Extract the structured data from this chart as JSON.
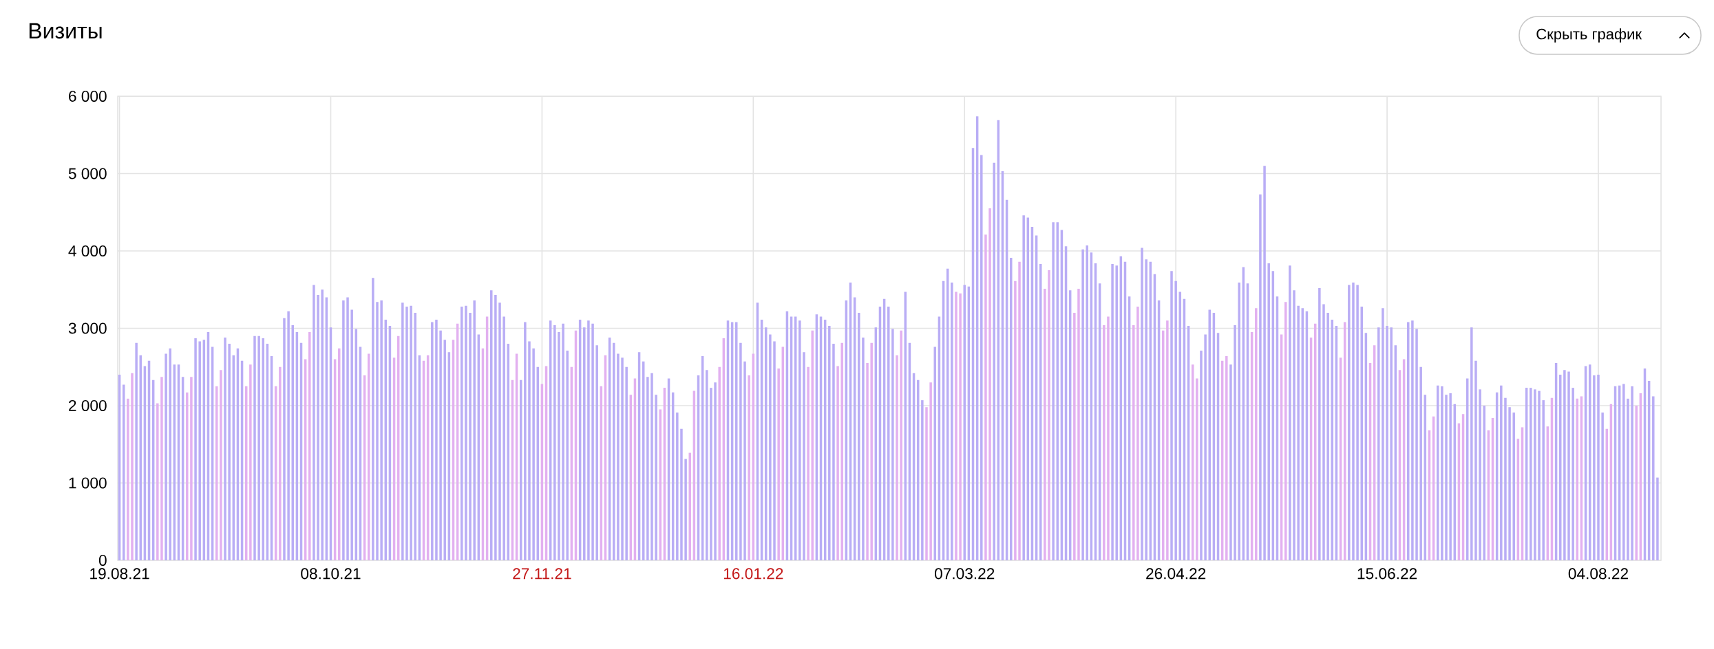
{
  "chart_data": {
    "type": "bar",
    "title": "Визиты",
    "annotations": [
      "Скрыть график"
    ],
    "x": [
      "2021-08-19",
      "2021-08-20",
      "2021-08-21",
      "2021-08-22",
      "2021-08-23",
      "2021-08-24",
      "2021-08-25",
      "2021-08-26",
      "2021-08-27",
      "2021-08-28",
      "2021-08-29",
      "2021-08-30",
      "2021-08-31",
      "2021-09-01",
      "2021-09-02",
      "2021-09-03",
      "2021-09-04",
      "2021-09-05",
      "2021-09-06",
      "2021-09-07",
      "2021-09-08",
      "2021-09-09",
      "2021-09-10",
      "2021-09-11",
      "2021-09-12",
      "2021-09-13",
      "2021-09-14",
      "2021-09-15",
      "2021-09-16",
      "2021-09-17",
      "2021-09-18",
      "2021-09-19",
      "2021-09-20",
      "2021-09-21",
      "2021-09-22",
      "2021-09-23",
      "2021-09-24",
      "2021-09-25",
      "2021-09-26",
      "2021-09-27",
      "2021-09-28",
      "2021-09-29",
      "2021-09-30",
      "2021-10-01",
      "2021-10-02",
      "2021-10-03",
      "2021-10-04",
      "2021-10-05",
      "2021-10-06",
      "2021-10-07",
      "2021-10-08",
      "2021-10-09",
      "2021-10-10",
      "2021-10-11",
      "2021-10-12",
      "2021-10-13",
      "2021-10-14",
      "2021-10-15",
      "2021-10-16",
      "2021-10-17",
      "2021-10-18",
      "2021-10-19",
      "2021-10-20",
      "2021-10-21",
      "2021-10-22",
      "2021-10-23",
      "2021-10-24",
      "2021-10-25",
      "2021-10-26",
      "2021-10-27",
      "2021-10-28",
      "2021-10-29",
      "2021-10-30",
      "2021-10-31",
      "2021-11-01",
      "2021-11-02",
      "2021-11-03",
      "2021-11-04",
      "2021-11-05",
      "2021-11-06",
      "2021-11-07",
      "2021-11-08",
      "2021-11-09",
      "2021-11-10",
      "2021-11-11",
      "2021-11-12",
      "2021-11-13",
      "2021-11-14",
      "2021-11-15",
      "2021-11-16",
      "2021-11-17",
      "2021-11-18",
      "2021-11-19",
      "2021-11-20",
      "2021-11-21",
      "2021-11-22",
      "2021-11-23",
      "2021-11-24",
      "2021-11-25",
      "2021-11-26",
      "2021-11-27",
      "2021-11-28",
      "2021-11-29",
      "2021-11-30",
      "2021-12-01",
      "2021-12-02",
      "2021-12-03",
      "2021-12-04",
      "2021-12-05",
      "2021-12-06",
      "2021-12-07",
      "2021-12-08",
      "2021-12-09",
      "2021-12-10",
      "2021-12-11",
      "2021-12-12",
      "2021-12-13",
      "2021-12-14",
      "2021-12-15",
      "2021-12-16",
      "2021-12-17",
      "2021-12-18",
      "2021-12-19",
      "2021-12-20",
      "2021-12-21",
      "2021-12-22",
      "2021-12-23",
      "2021-12-24",
      "2021-12-25",
      "2021-12-26",
      "2021-12-27",
      "2021-12-28",
      "2021-12-29",
      "2021-12-30",
      "2021-12-31",
      "2022-01-01",
      "2022-01-02",
      "2022-01-03",
      "2022-01-04",
      "2022-01-05",
      "2022-01-06",
      "2022-01-07",
      "2022-01-08",
      "2022-01-09",
      "2022-01-10",
      "2022-01-11",
      "2022-01-12",
      "2022-01-13",
      "2022-01-14",
      "2022-01-15",
      "2022-01-16",
      "2022-01-17",
      "2022-01-18",
      "2022-01-19",
      "2022-01-20",
      "2022-01-21",
      "2022-01-22",
      "2022-01-23",
      "2022-01-24",
      "2022-01-25",
      "2022-01-26",
      "2022-01-27",
      "2022-01-28",
      "2022-01-29",
      "2022-01-30",
      "2022-01-31",
      "2022-02-01",
      "2022-02-02",
      "2022-02-03",
      "2022-02-04",
      "2022-02-05",
      "2022-02-06",
      "2022-02-07",
      "2022-02-08",
      "2022-02-09",
      "2022-02-10",
      "2022-02-11",
      "2022-02-12",
      "2022-02-13",
      "2022-02-14",
      "2022-02-15",
      "2022-02-16",
      "2022-02-17",
      "2022-02-18",
      "2022-02-19",
      "2022-02-20",
      "2022-02-21",
      "2022-02-22",
      "2022-02-23",
      "2022-02-24",
      "2022-02-25",
      "2022-02-26",
      "2022-02-27",
      "2022-02-28",
      "2022-03-01",
      "2022-03-02",
      "2022-03-03",
      "2022-03-04",
      "2022-03-05",
      "2022-03-06",
      "2022-03-07",
      "2022-03-08",
      "2022-03-09",
      "2022-03-10",
      "2022-03-11",
      "2022-03-12",
      "2022-03-13",
      "2022-03-14",
      "2022-03-15",
      "2022-03-16",
      "2022-03-17",
      "2022-03-18",
      "2022-03-19",
      "2022-03-20",
      "2022-03-21",
      "2022-03-22",
      "2022-03-23",
      "2022-03-24",
      "2022-03-25",
      "2022-03-26",
      "2022-03-27",
      "2022-03-28",
      "2022-03-29",
      "2022-03-30",
      "2022-03-31",
      "2022-04-01",
      "2022-04-02",
      "2022-04-03",
      "2022-04-04",
      "2022-04-05",
      "2022-04-06",
      "2022-04-07",
      "2022-04-08",
      "2022-04-09",
      "2022-04-10",
      "2022-04-11",
      "2022-04-12",
      "2022-04-13",
      "2022-04-14",
      "2022-04-15",
      "2022-04-16",
      "2022-04-17",
      "2022-04-18",
      "2022-04-19",
      "2022-04-20",
      "2022-04-21",
      "2022-04-22",
      "2022-04-23",
      "2022-04-24",
      "2022-04-25",
      "2022-04-26",
      "2022-04-27",
      "2022-04-28",
      "2022-04-29",
      "2022-04-30",
      "2022-05-01",
      "2022-05-02",
      "2022-05-03",
      "2022-05-04",
      "2022-05-05",
      "2022-05-06",
      "2022-05-07",
      "2022-05-08",
      "2022-05-09",
      "2022-05-10",
      "2022-05-11",
      "2022-05-12",
      "2022-05-13",
      "2022-05-14",
      "2022-05-15",
      "2022-05-16",
      "2022-05-17",
      "2022-05-18",
      "2022-05-19",
      "2022-05-20",
      "2022-05-21",
      "2022-05-22",
      "2022-05-23",
      "2022-05-24",
      "2022-05-25",
      "2022-05-26",
      "2022-05-27",
      "2022-05-28",
      "2022-05-29",
      "2022-05-30",
      "2022-05-31",
      "2022-06-01",
      "2022-06-02",
      "2022-06-03",
      "2022-06-04",
      "2022-06-05",
      "2022-06-06",
      "2022-06-07",
      "2022-06-08",
      "2022-06-09",
      "2022-06-10",
      "2022-06-11",
      "2022-06-12",
      "2022-06-13",
      "2022-06-14",
      "2022-06-15",
      "2022-06-16",
      "2022-06-17",
      "2022-06-18",
      "2022-06-19",
      "2022-06-20",
      "2022-06-21",
      "2022-06-22",
      "2022-06-23",
      "2022-06-24",
      "2022-06-25",
      "2022-06-26",
      "2022-06-27",
      "2022-06-28",
      "2022-06-29",
      "2022-06-30",
      "2022-07-01",
      "2022-07-02",
      "2022-07-03",
      "2022-07-04",
      "2022-07-05",
      "2022-07-06",
      "2022-07-07",
      "2022-07-08",
      "2022-07-09",
      "2022-07-10",
      "2022-07-11",
      "2022-07-12",
      "2022-07-13",
      "2022-07-14",
      "2022-07-15",
      "2022-07-16",
      "2022-07-17",
      "2022-07-18",
      "2022-07-19",
      "2022-07-20",
      "2022-07-21",
      "2022-07-22",
      "2022-07-23",
      "2022-07-24",
      "2022-07-25",
      "2022-07-26",
      "2022-07-27",
      "2022-07-28",
      "2022-07-29",
      "2022-07-30",
      "2022-07-31",
      "2022-08-01",
      "2022-08-02",
      "2022-08-03",
      "2022-08-04",
      "2022-08-05",
      "2022-08-06",
      "2022-08-07",
      "2022-08-08",
      "2022-08-09",
      "2022-08-10",
      "2022-08-11",
      "2022-08-12",
      "2022-08-13",
      "2022-08-14",
      "2022-08-15",
      "2022-08-16",
      "2022-08-17",
      "2022-08-18"
    ],
    "values": [
      2400,
      2270,
      2090,
      2420,
      2810,
      2650,
      2510,
      2580,
      2330,
      2030,
      2370,
      2670,
      2740,
      2530,
      2530,
      2370,
      2170,
      2370,
      2870,
      2830,
      2850,
      2950,
      2760,
      2250,
      2460,
      2880,
      2800,
      2650,
      2740,
      2580,
      2250,
      2530,
      2900,
      2900,
      2870,
      2800,
      2640,
      2250,
      2500,
      3130,
      3220,
      3040,
      2950,
      2810,
      2600,
      2950,
      3560,
      3430,
      3500,
      3400,
      3010,
      2600,
      2740,
      3360,
      3400,
      3240,
      2990,
      2760,
      2390,
      2670,
      3650,
      3340,
      3360,
      3110,
      3030,
      2620,
      2900,
      3330,
      3280,
      3290,
      3200,
      2650,
      2580,
      2650,
      3080,
      3110,
      2970,
      2850,
      2690,
      2850,
      3060,
      3280,
      3290,
      3200,
      3360,
      2920,
      2740,
      3150,
      3490,
      3430,
      3330,
      3150,
      2800,
      2330,
      2670,
      2330,
      3080,
      2830,
      2740,
      2500,
      2280,
      2510,
      3100,
      3040,
      2950,
      3060,
      2710,
      2500,
      2970,
      3110,
      3010,
      3100,
      3060,
      2780,
      2250,
      2650,
      2880,
      2810,
      2670,
      2620,
      2500,
      2140,
      2350,
      2690,
      2570,
      2370,
      2420,
      2140,
      1950,
      2230,
      2350,
      2170,
      1910,
      1700,
      1310,
      1390,
      2190,
      2390,
      2640,
      2460,
      2230,
      2300,
      2500,
      2870,
      3100,
      3080,
      3080,
      2810,
      2570,
      2390,
      2670,
      3330,
      3110,
      3010,
      2920,
      2830,
      2480,
      2760,
      3220,
      3150,
      3150,
      3100,
      2690,
      2500,
      2970,
      3180,
      3150,
      3110,
      3030,
      2800,
      2510,
      2810,
      3360,
      3590,
      3400,
      3200,
      2880,
      2550,
      2810,
      3010,
      3280,
      3380,
      3280,
      2990,
      2650,
      2970,
      3470,
      2810,
      2420,
      2330,
      2070,
      1980,
      2300,
      2760,
      3150,
      3610,
      3770,
      3590,
      3470,
      3450,
      3560,
      3540,
      5330,
      5740,
      5240,
      4210,
      4550,
      5140,
      5690,
      5030,
      4660,
      3910,
      3610,
      3860,
      4460,
      4430,
      4310,
      4200,
      3830,
      3510,
      3750,
      4370,
      4370,
      4270,
      4060,
      3490,
      3200,
      3510,
      4020,
      4070,
      3980,
      3840,
      3580,
      3040,
      3150,
      3830,
      3810,
      3930,
      3860,
      3410,
      3040,
      3280,
      4040,
      3890,
      3860,
      3700,
      3360,
      2970,
      3100,
      3740,
      3610,
      3470,
      3380,
      3030,
      2530,
      2350,
      2710,
      2920,
      3240,
      3200,
      2940,
      2580,
      2640,
      2530,
      3040,
      3590,
      3790,
      3580,
      2950,
      3260,
      4730,
      5100,
      3840,
      3740,
      3410,
      2920,
      3340,
      3810,
      3490,
      3290,
      3260,
      3220,
      2880,
      3060,
      3520,
      3310,
      3200,
      3110,
      3030,
      2620,
      3080,
      3560,
      3590,
      3560,
      3280,
      2940,
      2550,
      2780,
      3010,
      3260,
      3030,
      3010,
      2780,
      2460,
      2600,
      3080,
      3100,
      2990,
      2500,
      2140,
      1680,
      1860,
      2260,
      2250,
      2140,
      2160,
      2020,
      1770,
      1890,
      2350,
      3010,
      2580,
      2210,
      2000,
      1680,
      1840,
      2170,
      2260,
      2100,
      1980,
      1910,
      1570,
      1720,
      2230,
      2230,
      2210,
      2190,
      2070,
      1730,
      2100,
      2550,
      2400,
      2460,
      2440,
      2230,
      2090,
      2120,
      2510,
      2530,
      2390,
      2400,
      1910,
      1700,
      2020,
      2250,
      2260,
      2280,
      2090,
      2250,
      2000,
      2160,
      2480,
      2320,
      2120,
      1070
    ],
    "colors": [
      "#b9adf5",
      "#b9adf5",
      "#e2b0f0",
      "#e2b0f0",
      "#b9adf5",
      "#b9adf5",
      "#b9adf5",
      "#b9adf5",
      "#b9adf5",
      "#e2b0f0",
      "#e2b0f0",
      "#b9adf5",
      "#b9adf5",
      "#b9adf5",
      "#b9adf5",
      "#b9adf5",
      "#e2b0f0",
      "#e2b0f0",
      "#b9adf5",
      "#b9adf5",
      "#b9adf5",
      "#b9adf5",
      "#b9adf5",
      "#e2b0f0",
      "#e2b0f0",
      "#b9adf5",
      "#b9adf5",
      "#b9adf5",
      "#b9adf5",
      "#b9adf5",
      "#e2b0f0",
      "#e2b0f0",
      "#b9adf5",
      "#b9adf5",
      "#b9adf5",
      "#b9adf5",
      "#b9adf5",
      "#e2b0f0",
      "#e2b0f0",
      "#b9adf5",
      "#b9adf5",
      "#b9adf5",
      "#b9adf5",
      "#b9adf5",
      "#e2b0f0",
      "#e2b0f0",
      "#b9adf5",
      "#b9adf5",
      "#b9adf5",
      "#b9adf5",
      "#b9adf5",
      "#e2b0f0",
      "#e2b0f0",
      "#b9adf5",
      "#b9adf5",
      "#b9adf5",
      "#b9adf5",
      "#b9adf5",
      "#e2b0f0",
      "#e2b0f0",
      "#b9adf5",
      "#b9adf5",
      "#b9adf5",
      "#b9adf5",
      "#b9adf5",
      "#e2b0f0",
      "#e2b0f0",
      "#b9adf5",
      "#b9adf5",
      "#b9adf5",
      "#b9adf5",
      "#b9adf5",
      "#e2b0f0",
      "#e2b0f0",
      "#b9adf5",
      "#b9adf5",
      "#b9adf5",
      "#b9adf5",
      "#b9adf5",
      "#e2b0f0",
      "#e2b0f0",
      "#b9adf5",
      "#b9adf5",
      "#b9adf5",
      "#b9adf5",
      "#b9adf5",
      "#e2b0f0",
      "#e2b0f0",
      "#b9adf5",
      "#b9adf5",
      "#b9adf5",
      "#b9adf5",
      "#b9adf5",
      "#e2b0f0",
      "#e2b0f0",
      "#b9adf5",
      "#b9adf5",
      "#b9adf5",
      "#b9adf5",
      "#b9adf5",
      "#e2b0f0",
      "#e2b0f0",
      "#b9adf5",
      "#b9adf5",
      "#b9adf5",
      "#b9adf5",
      "#b9adf5",
      "#e2b0f0",
      "#e2b0f0",
      "#b9adf5",
      "#b9adf5",
      "#b9adf5",
      "#b9adf5",
      "#b9adf5",
      "#e2b0f0",
      "#e2b0f0",
      "#b9adf5",
      "#b9adf5",
      "#b9adf5",
      "#b9adf5",
      "#b9adf5",
      "#e2b0f0",
      "#e2b0f0",
      "#b9adf5",
      "#b9adf5",
      "#b9adf5",
      "#b9adf5",
      "#b9adf5",
      "#e2b0f0",
      "#e2b0f0",
      "#b9adf5",
      "#b9adf5",
      "#b9adf5",
      "#b9adf5",
      "#b9adf5",
      "#e2b0f0",
      "#e2b0f0",
      "#b9adf5",
      "#b9adf5",
      "#b9adf5",
      "#b9adf5",
      "#b9adf5",
      "#e2b0f0",
      "#e2b0f0",
      "#b9adf5",
      "#b9adf5",
      "#b9adf5",
      "#b9adf5",
      "#b9adf5",
      "#e2b0f0",
      "#e2b0f0",
      "#b9adf5",
      "#b9adf5",
      "#b9adf5",
      "#b9adf5",
      "#b9adf5",
      "#e2b0f0",
      "#e2b0f0",
      "#b9adf5",
      "#b9adf5",
      "#b9adf5",
      "#b9adf5",
      "#b9adf5",
      "#e2b0f0",
      "#e2b0f0",
      "#b9adf5",
      "#b9adf5",
      "#b9adf5",
      "#b9adf5",
      "#b9adf5",
      "#e2b0f0",
      "#e2b0f0",
      "#b9adf5",
      "#b9adf5",
      "#b9adf5",
      "#b9adf5",
      "#b9adf5",
      "#e2b0f0",
      "#e2b0f0",
      "#b9adf5",
      "#b9adf5",
      "#b9adf5",
      "#b9adf5",
      "#b9adf5",
      "#e2b0f0",
      "#e2b0f0",
      "#b9adf5",
      "#b9adf5",
      "#b9adf5",
      "#b9adf5",
      "#b9adf5",
      "#e2b0f0",
      "#e2b0f0",
      "#b9adf5",
      "#b9adf5",
      "#b9adf5",
      "#b9adf5",
      "#b9adf5",
      "#e2b0f0",
      "#e2b0f0",
      "#b9adf5",
      "#b9adf5",
      "#b9adf5",
      "#b9adf5",
      "#b9adf5",
      "#e2b0f0",
      "#e2b0f0",
      "#b9adf5",
      "#b9adf5",
      "#b9adf5",
      "#b9adf5",
      "#b9adf5",
      "#e2b0f0",
      "#e2b0f0",
      "#b9adf5",
      "#b9adf5",
      "#b9adf5",
      "#b9adf5",
      "#b9adf5",
      "#e2b0f0",
      "#e2b0f0",
      "#b9adf5",
      "#b9adf5",
      "#b9adf5",
      "#b9adf5",
      "#b9adf5",
      "#e2b0f0",
      "#e2b0f0",
      "#b9adf5",
      "#b9adf5",
      "#b9adf5",
      "#b9adf5",
      "#b9adf5",
      "#e2b0f0",
      "#e2b0f0",
      "#b9adf5",
      "#b9adf5",
      "#b9adf5",
      "#b9adf5",
      "#b9adf5",
      "#e2b0f0",
      "#e2b0f0",
      "#b9adf5",
      "#b9adf5",
      "#b9adf5",
      "#b9adf5",
      "#b9adf5",
      "#e2b0f0",
      "#e2b0f0",
      "#b9adf5",
      "#b9adf5",
      "#b9adf5",
      "#b9adf5",
      "#b9adf5",
      "#e2b0f0",
      "#e2b0f0",
      "#b9adf5",
      "#b9adf5",
      "#b9adf5",
      "#b9adf5",
      "#b9adf5",
      "#e2b0f0",
      "#e2b0f0",
      "#b9adf5",
      "#b9adf5",
      "#b9adf5",
      "#b9adf5",
      "#b9adf5",
      "#e2b0f0",
      "#e2b0f0",
      "#b9adf5",
      "#b9adf5",
      "#b9adf5",
      "#b9adf5",
      "#b9adf5",
      "#e2b0f0",
      "#e2b0f0",
      "#b9adf5",
      "#b9adf5",
      "#b9adf5",
      "#b9adf5",
      "#b9adf5",
      "#e2b0f0",
      "#e2b0f0",
      "#b9adf5",
      "#b9adf5",
      "#b9adf5",
      "#b9adf5",
      "#b9adf5",
      "#e2b0f0",
      "#e2b0f0",
      "#b9adf5",
      "#b9adf5",
      "#b9adf5",
      "#b9adf5",
      "#b9adf5",
      "#e2b0f0",
      "#e2b0f0",
      "#b9adf5",
      "#b9adf5",
      "#b9adf5",
      "#b9adf5",
      "#b9adf5",
      "#e2b0f0",
      "#e2b0f0",
      "#b9adf5",
      "#b9adf5",
      "#b9adf5",
      "#b9adf5",
      "#b9adf5",
      "#e2b0f0",
      "#e2b0f0",
      "#b9adf5",
      "#b9adf5",
      "#b9adf5",
      "#b9adf5",
      "#b9adf5",
      "#e2b0f0",
      "#e2b0f0",
      "#b9adf5",
      "#b9adf5",
      "#b9adf5",
      "#b9adf5",
      "#b9adf5",
      "#e2b0f0",
      "#e2b0f0",
      "#b9adf5",
      "#b9adf5",
      "#b9adf5",
      "#b9adf5",
      "#b9adf5",
      "#e2b0f0",
      "#e2b0f0",
      "#b9adf5",
      "#b9adf5",
      "#b9adf5",
      "#b9adf5",
      "#b9adf5",
      "#e2b0f0",
      "#e2b0f0",
      "#b9adf5",
      "#b9adf5",
      "#b9adf5",
      "#b9adf5",
      "#b9adf5",
      "#e2b0f0",
      "#e2b0f0",
      "#b9adf5",
      "#b9adf5",
      "#b9adf5",
      "#b9adf5",
      "#b9adf5",
      "#e2b0f0",
      "#e2b0f0",
      "#b9adf5",
      "#b9adf5",
      "#b9adf5",
      "#b9adf5",
      "#b9adf5",
      "#e2b0f0",
      "#e2b0f0",
      "#b9adf5",
      "#b9adf5",
      "#b9adf5",
      "#b9adf5"
    ],
    "xlim": [
      "2021-08-18T14:00",
      "2022-08-18T20:00"
    ],
    "xticks": [
      {
        "value": "2021-08-19",
        "label": "19.08.21"
      },
      {
        "value": "2021-10-08",
        "label": "08.10.21"
      },
      {
        "value": "2021-11-27",
        "label": "27.11.21"
      },
      {
        "value": "2022-01-16",
        "label": "16.01.22"
      },
      {
        "value": "2022-03-07",
        "label": "07.03.22"
      },
      {
        "value": "2022-04-26",
        "label": "26.04.22"
      },
      {
        "value": "2022-06-15",
        "label": "15.06.22"
      },
      {
        "value": "2022-08-04",
        "label": "04.08.22"
      }
    ],
    "ylim": [
      0,
      6000
    ],
    "yticks": [
      0,
      {
        "value": 1000,
        "label": "1 000"
      },
      {
        "value": 2000,
        "label": "2 000"
      },
      {
        "value": 3000,
        "label": "3 000"
      },
      {
        "value": 4000,
        "label": "4 000"
      },
      {
        "value": 5000,
        "label": "5 000"
      },
      {
        "value": 6000,
        "label": "6 000"
      }
    ],
    "grid": true
  }
}
